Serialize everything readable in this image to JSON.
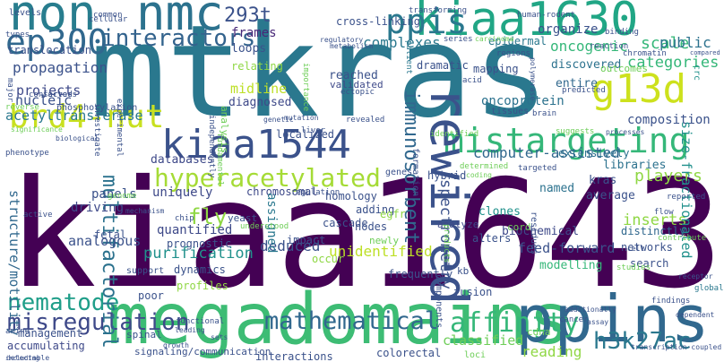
{
  "words": [
    {
      "text": "kiaa1643",
      "color": "#440154",
      "size": "huge"
    },
    {
      "text": "mtkras",
      "color": "#2a788e",
      "size": "huge"
    },
    {
      "text": "megadomains",
      "color": "#3dbc74",
      "size": "xl"
    },
    {
      "text": "ppins",
      "color": "#31688e",
      "size": "xl"
    },
    {
      "text": "kiaa1630",
      "color": "#21a685",
      "size": "xl"
    },
    {
      "text": "kiaa1544",
      "color": "#3b528b",
      "size": "l"
    },
    {
      "text": "g13d",
      "color": "#cde11d",
      "size": "l"
    },
    {
      "text": "mistargeting",
      "color": "#35b779",
      "size": "l"
    },
    {
      "text": "brd4-nut",
      "color": "#c8e020",
      "size": "l"
    },
    {
      "text": "ep300",
      "color": "#31688e",
      "size": "l"
    },
    {
      "text": "non",
      "color": "#287d8e",
      "size": "l"
    },
    {
      "text": "nmc",
      "color": "#2c728e",
      "size": "l"
    },
    {
      "text": "rewired",
      "color": "#3b528b",
      "size": "l"
    },
    {
      "text": "ppis",
      "color": "#2a788e",
      "size": "l"
    },
    {
      "text": "hyperacetylated",
      "color": "#a5db36",
      "size": "m"
    },
    {
      "text": "affinity",
      "color": "#35b779",
      "size": "m"
    },
    {
      "text": "h3k27ac",
      "color": "#2a788e",
      "size": "m"
    },
    {
      "text": "nematode",
      "color": "#1f9e89",
      "size": "m"
    },
    {
      "text": "misregulation",
      "color": "#3e4989",
      "size": "m"
    },
    {
      "text": "mathematical",
      "color": "#31688e",
      "size": "m"
    },
    {
      "text": "interactors",
      "color": "#33638d",
      "size": "m"
    },
    {
      "text": "multifactorial",
      "color": "#2c728e",
      "size": "m"
    },
    {
      "text": "immunosorbent",
      "color": "#31688e",
      "size": "m"
    },
    {
      "text": "spectrometry",
      "color": "#3b528b",
      "size": "m"
    },
    {
      "text": "293t",
      "color": "#3b528b",
      "size": "m"
    },
    {
      "text": "frames",
      "color": "#482878",
      "size": "s"
    },
    {
      "text": "propagation",
      "color": "#3b528b",
      "size": "s"
    },
    {
      "text": "projects",
      "color": "#3e4989",
      "size": "s"
    },
    {
      "text": "nucleic",
      "color": "#3b528b",
      "size": "s"
    },
    {
      "text": "acetyltransferase",
      "color": "#2a788e",
      "size": "s"
    },
    {
      "text": "oncogenic",
      "color": "#35b779",
      "size": "s"
    },
    {
      "text": "organize",
      "color": "#3b528b",
      "size": "s"
    },
    {
      "text": "scale",
      "color": "#35b779",
      "size": "s"
    },
    {
      "text": "public",
      "color": "#2c728e",
      "size": "s"
    },
    {
      "text": "categories",
      "color": "#35b779",
      "size": "s"
    },
    {
      "text": "crc",
      "color": "#21918c",
      "size": "s"
    },
    {
      "text": "composition",
      "color": "#3b528b",
      "size": "s"
    },
    {
      "text": "computer-assisted",
      "color": "#31688e",
      "size": "s"
    },
    {
      "text": "libraries",
      "color": "#2c728e",
      "size": "s"
    },
    {
      "text": "players",
      "color": "#8fd744",
      "size": "s"
    },
    {
      "text": "kras",
      "color": "#3b528b",
      "size": "s"
    },
    {
      "text": "named",
      "color": "#2c728e",
      "size": "s"
    },
    {
      "text": "average",
      "color": "#3b528b",
      "size": "s"
    },
    {
      "text": "inserts",
      "color": "#8fd744",
      "size": "s"
    },
    {
      "text": "size-fractionated",
      "color": "#21918c",
      "size": "s"
    },
    {
      "text": "structure/motility",
      "color": "#31688e",
      "size": "s"
    },
    {
      "text": "panels",
      "color": "#3b528b",
      "size": "s"
    },
    {
      "text": "driving",
      "color": "#3e4989",
      "size": "s"
    },
    {
      "text": "uniquely",
      "color": "#3e4989",
      "size": "s"
    },
    {
      "text": "fly",
      "color": "#8fd744",
      "size": "s"
    },
    {
      "text": "quantified",
      "color": "#3e4989",
      "size": "s"
    },
    {
      "text": "purification",
      "color": "#21918c",
      "size": "s"
    },
    {
      "text": "deduced",
      "color": "#3b528b",
      "size": "s"
    },
    {
      "text": "unidentified",
      "color": "#bddf26",
      "size": "s"
    },
    {
      "text": "feed-forward",
      "color": "#3b528b",
      "size": "s"
    },
    {
      "text": "search",
      "color": "#3b528b",
      "size": "s"
    },
    {
      "text": "analogous",
      "color": "#3b528b",
      "size": "s"
    },
    {
      "text": "modelling",
      "color": "#35b779",
      "size": "xs"
    },
    {
      "text": "reading",
      "color": "#8fd744",
      "size": "s"
    },
    {
      "text": "classified",
      "color": "#6ece58",
      "size": "s"
    },
    {
      "text": "midline",
      "color": "#bddf26",
      "size": "s"
    },
    {
      "text": "diagnosed",
      "color": "#3e4989",
      "size": "s"
    },
    {
      "text": "oncoprotein",
      "color": "#2c728e",
      "size": "s"
    },
    {
      "text": "entire",
      "color": "#31688e",
      "size": "s"
    },
    {
      "text": "reached",
      "color": "#3b528b",
      "size": "s"
    },
    {
      "text": "complexes",
      "color": "#2a788e",
      "size": "s"
    },
    {
      "text": "epidermal",
      "color": "#2a788e",
      "size": "xs"
    },
    {
      "text": "discovered",
      "color": "#2c728e",
      "size": "xs"
    },
    {
      "text": "loops",
      "color": "#3b528b",
      "size": "xs"
    },
    {
      "text": "relating",
      "color": "#8fd744",
      "size": "xs"
    },
    {
      "text": "validated",
      "color": "#3e4989",
      "size": "xs"
    },
    {
      "text": "dramatic",
      "color": "#3b528b",
      "size": "xs"
    },
    {
      "text": "mapping",
      "color": "#3b528b",
      "size": "xs"
    },
    {
      "text": "outcomes",
      "color": "#6ece58",
      "size": "xs"
    },
    {
      "text": "translocation",
      "color": "#3b528b",
      "size": "xs"
    },
    {
      "text": "databases",
      "color": "#3e4989",
      "size": "xs"
    },
    {
      "text": "localized",
      "color": "#3b528b",
      "size": "xs"
    },
    {
      "text": "extensively",
      "color": "#2c728e",
      "size": "xs"
    },
    {
      "text": "chromosomal",
      "color": "#3e4989",
      "size": "xs"
    },
    {
      "text": "homology",
      "color": "#3b528b",
      "size": "xs"
    },
    {
      "text": "adding",
      "color": "#3b528b",
      "size": "xs"
    },
    {
      "text": "hybrid",
      "color": "#3b528b",
      "size": "xs"
    },
    {
      "text": "clones",
      "color": "#21918c",
      "size": "xs"
    },
    {
      "text": "biochemical",
      "color": "#3e4989",
      "size": "xs"
    },
    {
      "text": "distinctly",
      "color": "#31688e",
      "size": "xs"
    },
    {
      "text": "networks",
      "color": "#3b528b",
      "size": "xs"
    },
    {
      "text": "prognostic",
      "color": "#3b528b",
      "size": "xs"
    },
    {
      "text": "dynamics",
      "color": "#3b528b",
      "size": "xs"
    },
    {
      "text": "profiles",
      "color": "#8fd744",
      "size": "xs"
    },
    {
      "text": "poor",
      "color": "#3b528b",
      "size": "xs"
    },
    {
      "text": "egfr",
      "color": "#8fd744",
      "size": "xs"
    },
    {
      "text": "cascade",
      "color": "#3b528b",
      "size": "xs"
    },
    {
      "text": "nodes",
      "color": "#3b528b",
      "size": "xs"
    },
    {
      "text": "analyze",
      "color": "#3e4989",
      "size": "xs"
    },
    {
      "text": "alters",
      "color": "#3b528b",
      "size": "xs"
    },
    {
      "text": "cord",
      "color": "#6ece58",
      "size": "xs"
    },
    {
      "text": "fusion",
      "color": "#3b528b",
      "size": "xs"
    },
    {
      "text": "management",
      "color": "#3b528b",
      "size": "xs"
    },
    {
      "text": "accumulating",
      "color": "#3e4989",
      "size": "xs"
    },
    {
      "text": "interactions",
      "color": "#3b528b",
      "size": "xs"
    },
    {
      "text": "colorectal",
      "color": "#3b528b",
      "size": "xs"
    },
    {
      "text": "cdna",
      "color": "#6ece58",
      "size": "xs"
    },
    {
      "text": "loci",
      "color": "#6ece58",
      "size": "xs"
    },
    {
      "text": "transcription-coupled",
      "color": "#3b528b",
      "size": "xs"
    },
    {
      "text": "signaling/communication",
      "color": "#3b528b",
      "size": "xs"
    },
    {
      "text": "spinal",
      "color": "#3b528b",
      "size": "xs"
    },
    {
      "text": "global",
      "color": "#2a788e",
      "size": "xs"
    },
    {
      "text": "frequently",
      "color": "#3b528b",
      "size": "xs"
    },
    {
      "text": "kb",
      "color": "#3b528b",
      "size": "xs"
    },
    {
      "text": "impact",
      "color": "#3b528b",
      "size": "xs"
    },
    {
      "text": "newly",
      "color": "#6ece58",
      "size": "xs"
    },
    {
      "text": "fetal",
      "color": "#3b528b",
      "size": "xs"
    },
    {
      "text": "assigned",
      "color": "#2a788e",
      "size": "s"
    },
    {
      "text": "occur",
      "color": "#8fd744",
      "size": "xs"
    },
    {
      "text": "yeast",
      "color": "#3b528b",
      "size": "xs"
    },
    {
      "text": "cross-linking",
      "color": "#3b528b",
      "size": "xs"
    },
    {
      "text": "human-rodent",
      "color": "#3b528b",
      "size": "xxs"
    },
    {
      "text": "reaction",
      "color": "#3b528b",
      "size": "xxs"
    },
    {
      "text": "polymerase",
      "color": "#3b528b",
      "size": "xxs"
    },
    {
      "text": "regulatory",
      "color": "#3b528b",
      "size": "xxs"
    },
    {
      "text": "series",
      "color": "#3b528b",
      "size": "xxs"
    },
    {
      "text": "carcinoma",
      "color": "#6ece58",
      "size": "xxs"
    },
    {
      "text": "cellular",
      "color": "#3b528b",
      "size": "xxs"
    },
    {
      "text": "ectopic",
      "color": "#3b528b",
      "size": "xxs"
    },
    {
      "text": "patient",
      "color": "#2a788e",
      "size": "xxs"
    },
    {
      "text": "investigate",
      "color": "#3b528b",
      "size": "xxs"
    },
    {
      "text": "experimental",
      "color": "#3b528b",
      "size": "xxs"
    },
    {
      "text": "significance",
      "color": "#6ece58",
      "size": "xxs"
    },
    {
      "text": "phenotype",
      "color": "#3b528b",
      "size": "xxs"
    },
    {
      "text": "phosphorylation",
      "color": "#3b528b",
      "size": "xxs"
    },
    {
      "text": "reverse",
      "color": "#6ece58",
      "size": "xxs"
    },
    {
      "text": "conserved",
      "color": "#3b528b",
      "size": "xxs"
    },
    {
      "text": "factors",
      "color": "#3b528b",
      "size": "xxs"
    },
    {
      "text": "major",
      "color": "#3b528b",
      "size": "xxs"
    },
    {
      "text": "types",
      "color": "#3b528b",
      "size": "xxs"
    },
    {
      "text": "common",
      "color": "#3b528b",
      "size": "xxs"
    },
    {
      "text": "analysis",
      "color": "#6ece58",
      "size": "xxs"
    },
    {
      "text": "fundamental",
      "color": "#6ece58",
      "size": "xxs"
    },
    {
      "text": "independently",
      "color": "#3b528b",
      "size": "xxs"
    },
    {
      "text": "importance",
      "color": "#6ece58",
      "size": "xxs"
    },
    {
      "text": "transforming",
      "color": "#3b528b",
      "size": "xxs"
    },
    {
      "text": "binding",
      "color": "#3b528b",
      "size": "xxs"
    },
    {
      "text": "compared",
      "color": "#3b528b",
      "size": "xxs"
    },
    {
      "text": "chromatin",
      "color": "#3b528b",
      "size": "xxs"
    },
    {
      "text": "predicted",
      "color": "#3b528b",
      "size": "xxs"
    },
    {
      "text": "brain",
      "color": "#3b528b",
      "size": "xxs"
    },
    {
      "text": "tissues",
      "color": "#3b528b",
      "size": "xxs"
    },
    {
      "text": "revealed",
      "color": "#3b528b",
      "size": "xxs"
    },
    {
      "text": "mutation",
      "color": "#3b528b",
      "size": "xxs"
    },
    {
      "text": "metabolism",
      "color": "#3b528b",
      "size": "xxs"
    },
    {
      "text": "liver",
      "color": "#3b528b",
      "size": "xxs"
    },
    {
      "text": "genetic",
      "color": "#3b528b",
      "size": "xxs"
    },
    {
      "text": "suggests",
      "color": "#6ece58",
      "size": "xxs"
    },
    {
      "text": "processes",
      "color": "#3b528b",
      "size": "xxs"
    },
    {
      "text": "identified",
      "color": "#6ece58",
      "size": "xxs"
    },
    {
      "text": "determined",
      "color": "#6ece58",
      "size": "xxs"
    },
    {
      "text": "coding",
      "color": "#6ece58",
      "size": "xxs"
    },
    {
      "text": "targeted",
      "color": "#3b528b",
      "size": "xxs"
    },
    {
      "text": "genes",
      "color": "#3b528b",
      "size": "xxs"
    },
    {
      "text": "formation",
      "color": "#3b528b",
      "size": "xxs"
    },
    {
      "text": "regulation",
      "color": "#3b528b",
      "size": "xxs"
    },
    {
      "text": "chip",
      "color": "#3b528b",
      "size": "xxs"
    },
    {
      "text": "understood",
      "color": "#6ece58",
      "size": "xxs"
    },
    {
      "text": "functional",
      "color": "#3b528b",
      "size": "xxs"
    },
    {
      "text": "leading",
      "color": "#3b528b",
      "size": "xxs"
    },
    {
      "text": "support",
      "color": "#3b528b",
      "size": "xxs"
    },
    {
      "text": "mechanism",
      "color": "#3b528b",
      "size": "xxs"
    },
    {
      "text": "genome",
      "color": "#6ece58",
      "size": "xxs"
    },
    {
      "text": "studies",
      "color": "#6ece58",
      "size": "xxs"
    },
    {
      "text": "flow",
      "color": "#3b528b",
      "size": "xxs"
    },
    {
      "text": "cell",
      "color": "#3b528b",
      "size": "xxs"
    },
    {
      "text": "receptor",
      "color": "#3b528b",
      "size": "xxs"
    },
    {
      "text": "findings",
      "color": "#3b528b",
      "size": "xxs"
    },
    {
      "text": "additionally",
      "color": "#3b528b",
      "size": "xxs"
    },
    {
      "text": "cancer",
      "color": "#3b528b",
      "size": "xxs"
    },
    {
      "text": "assay",
      "color": "#3b528b",
      "size": "xxs"
    },
    {
      "text": "sets",
      "color": "#3b528b",
      "size": "xxs"
    },
    {
      "text": "growth",
      "color": "#3b528b",
      "size": "xxs"
    },
    {
      "text": "dependent",
      "color": "#3b528b",
      "size": "xxs"
    },
    {
      "text": "including",
      "color": "#3b528b",
      "size": "xxs"
    },
    {
      "text": "amino",
      "color": "#3b528b",
      "size": "xxs"
    },
    {
      "text": "detectable",
      "color": "#3b528b",
      "size": "xxs"
    },
    {
      "text": "reported",
      "color": "#3b528b",
      "size": "xxs"
    },
    {
      "text": "residues",
      "color": "#3b528b",
      "size": "xxs"
    },
    {
      "text": "components",
      "color": "#3b528b",
      "size": "xxs"
    },
    {
      "text": "products",
      "color": "#6ece58",
      "size": "xxs"
    },
    {
      "text": "active",
      "color": "#3b528b",
      "size": "xxs"
    },
    {
      "text": "contribute",
      "color": "#6ece58",
      "size": "xxs"
    },
    {
      "text": "regions",
      "color": "#3b528b",
      "size": "xxs"
    },
    {
      "text": "acid",
      "color": "#3b528b",
      "size": "xxs"
    },
    {
      "text": "biological",
      "color": "#3b528b",
      "size": "xxs"
    },
    {
      "text": "levels",
      "color": "#3b528b",
      "size": "xxs"
    }
  ]
}
